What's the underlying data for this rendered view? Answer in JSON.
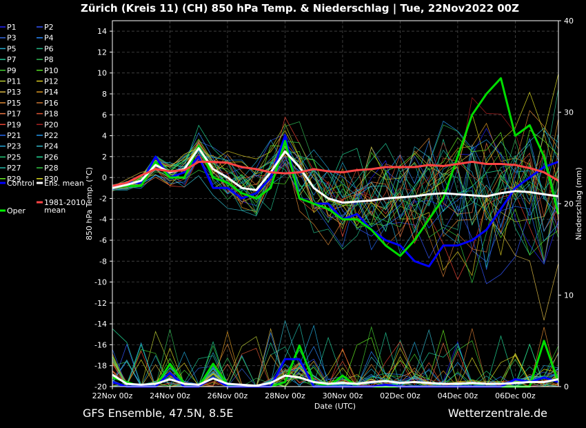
{
  "chart_data": {
    "type": "line",
    "title": "Zürich (Kreis 11)  (CH)  850 hPa Temp. & Niederschlag | Tue, 22Nov2022 00Z",
    "xlabel": "Date (UTC)",
    "ylabel_left": "850 hPa Temp. (°C)",
    "ylabel_right": "Niederschlag (mm)",
    "x_ticks": [
      "22Nov 00z",
      "24Nov 00z",
      "26Nov 00z",
      "28Nov 00z",
      "30Nov 00z",
      "02Dec 00z",
      "04Dec 00z",
      "06Dec 00z"
    ],
    "x_range_days": [
      0,
      15.5
    ],
    "left_ylim": [
      -20,
      15
    ],
    "left_ticks": [
      14,
      12,
      10,
      8,
      6,
      4,
      2,
      0,
      -2,
      -4,
      -6,
      -8,
      -10,
      -12,
      -14,
      -16,
      -18,
      -20
    ],
    "right_ylim": [
      0,
      40
    ],
    "right_ticks": [
      40,
      30,
      20,
      10,
      0
    ],
    "grid": true,
    "legend": {
      "placement": "left",
      "entries": [
        {
          "label": "P1",
          "color": "#2222ff"
        },
        {
          "label": "P2",
          "color": "#3355ff"
        },
        {
          "label": "P3",
          "color": "#3366dd"
        },
        {
          "label": "P4",
          "color": "#2a8aff"
        },
        {
          "label": "P5",
          "color": "#22aacc"
        },
        {
          "label": "P6",
          "color": "#22bb88"
        },
        {
          "label": "P7",
          "color": "#22cc99"
        },
        {
          "label": "P8",
          "color": "#33bb55"
        },
        {
          "label": "P9",
          "color": "#44cc33"
        },
        {
          "label": "P10",
          "color": "#55dd22"
        },
        {
          "label": "P11",
          "color": "#bbcc33"
        },
        {
          "label": "P12",
          "color": "#ddcc22"
        },
        {
          "label": "P13",
          "color": "#ddbb44"
        },
        {
          "label": "P14",
          "color": "#dd9922"
        },
        {
          "label": "P15",
          "color": "#dd8833"
        },
        {
          "label": "P16",
          "color": "#cc7733"
        },
        {
          "label": "P17",
          "color": "#ee7744"
        },
        {
          "label": "P18",
          "color": "#dd5533"
        },
        {
          "label": "P19",
          "color": "#ee4433"
        },
        {
          "label": "P20",
          "color": "#aa2222"
        },
        {
          "label": "P21",
          "color": "#2266ee"
        },
        {
          "label": "P22",
          "color": "#2299ee"
        },
        {
          "label": "P23",
          "color": "#22aadd"
        },
        {
          "label": "P24",
          "color": "#33bbcc"
        },
        {
          "label": "P25",
          "color": "#22cc77"
        },
        {
          "label": "P26",
          "color": "#22dd99"
        },
        {
          "label": "P27",
          "color": "#22bbaa"
        },
        {
          "label": "P28",
          "color": "#33cc44"
        },
        {
          "label": "P29",
          "color": "#66ee22"
        },
        {
          "label": "P30",
          "color": "#dddd22"
        },
        {
          "label": "Control",
          "color": "#0000ff"
        },
        {
          "label": "Ens. mean",
          "color": "#ffffff"
        },
        {
          "label": "1981-2010 mean",
          "color": "#ff4444",
          "lines": [
            "1981-2010",
            "mean"
          ]
        },
        {
          "label": "Oper",
          "color": "#00ff00"
        }
      ]
    },
    "temperature_series": [
      {
        "name": "Control",
        "color": "#0000ff",
        "width": 3,
        "x": [
          0,
          0.5,
          1,
          1.5,
          2,
          2.5,
          3,
          3.5,
          4,
          4.5,
          5,
          5.5,
          6,
          6.5,
          7,
          7.5,
          8,
          8.5,
          9,
          9.5,
          10,
          10.5,
          11,
          11.5,
          12,
          12.5,
          13,
          13.5,
          14,
          14.5,
          15,
          15.5
        ],
        "y": [
          -1,
          -0.5,
          -0.5,
          2,
          0,
          0.5,
          2,
          -1,
          -1,
          -2,
          -1.5,
          0,
          4,
          -2,
          -2.5,
          -2.5,
          -4,
          -3.5,
          -5,
          -6,
          -6.5,
          -8,
          -8.5,
          -6.5,
          -6.5,
          -6,
          -5,
          -3,
          -1,
          0,
          1,
          1.5
        ]
      },
      {
        "name": "Oper",
        "color": "#00dd00",
        "width": 3,
        "x": [
          0,
          0.5,
          1,
          1.5,
          2,
          2.5,
          3,
          3.5,
          4,
          4.5,
          5,
          5.5,
          6,
          6.5,
          7,
          7.5,
          8,
          8.5,
          9,
          9.5,
          10,
          10.5,
          11,
          11.5,
          12,
          12.5,
          13,
          13.5,
          14,
          14.5,
          15,
          15.5
        ],
        "y": [
          -1,
          -0.8,
          -0.8,
          1.5,
          0,
          0,
          3,
          0,
          -0.5,
          -1.5,
          -2,
          -1,
          3.5,
          -2,
          -2.5,
          -3,
          -4,
          -4,
          -5,
          -6.5,
          -7.5,
          -6,
          -4,
          -2,
          2,
          6,
          8,
          9.5,
          4,
          5,
          2,
          -3.5
        ]
      },
      {
        "name": "Ens. mean",
        "color": "#ffffff",
        "width": 3,
        "x": [
          0,
          0.5,
          1,
          1.5,
          2,
          2.5,
          3,
          3.5,
          4,
          4.5,
          5,
          5.5,
          6,
          6.5,
          7,
          7.5,
          8,
          8.5,
          9,
          9.5,
          10,
          10.5,
          11,
          11.5,
          12,
          12.5,
          13,
          13.5,
          14,
          14.5,
          15,
          15.5
        ],
        "y": [
          -1,
          -0.7,
          -0.3,
          1.2,
          0.5,
          0.8,
          2.8,
          0.8,
          0,
          -1,
          -1.2,
          0.5,
          2.5,
          1,
          -1,
          -2,
          -2.4,
          -2.3,
          -2.2,
          -2,
          -1.9,
          -1.8,
          -1.6,
          -1.5,
          -1.6,
          -1.7,
          -1.8,
          -1.5,
          -1.3,
          -1.4,
          -1.6,
          -1.8
        ]
      },
      {
        "name": "1981-2010 mean",
        "color": "#ff4444",
        "width": 3,
        "x": [
          0,
          0.5,
          1,
          1.5,
          2,
          2.5,
          3,
          3.5,
          4,
          4.5,
          5,
          5.5,
          6,
          6.5,
          7,
          7.5,
          8,
          8.5,
          9,
          9.5,
          10,
          10.5,
          11,
          11.5,
          12,
          12.5,
          13,
          13.5,
          14,
          14.5,
          15,
          15.5
        ],
        "y": [
          -0.8,
          -0.5,
          0.2,
          0.8,
          0.6,
          0.7,
          1.5,
          1.5,
          1.4,
          1,
          0.8,
          0.5,
          0.4,
          0.5,
          0.8,
          0.6,
          0.5,
          0.7,
          0.8,
          1,
          1,
          1,
          1.2,
          1.1,
          1.3,
          1.5,
          1.3,
          1.3,
          1.2,
          0.9,
          0.5,
          -0.3
        ]
      }
    ],
    "precipitation_series": [
      {
        "name": "Oper",
        "color": "#00dd00",
        "width": 3,
        "x": [
          0,
          0.5,
          1,
          1.5,
          2,
          2.5,
          3,
          3.5,
          4,
          4.5,
          5,
          5.5,
          6,
          6.5,
          7,
          7.5,
          8,
          8.5,
          9,
          9.5,
          10,
          10.5,
          11,
          11.5,
          12,
          12.5,
          13,
          13.5,
          14,
          14.5,
          15,
          15.5
        ],
        "y": [
          1,
          0.5,
          0,
          0,
          2.5,
          0.3,
          0,
          2.5,
          0.2,
          0,
          0,
          0,
          0.5,
          4.5,
          0.5,
          0,
          1.2,
          0,
          0,
          0,
          0,
          0,
          0,
          0,
          0,
          0,
          0,
          0,
          0,
          0,
          5,
          0.5
        ]
      },
      {
        "name": "Control",
        "color": "#0000ff",
        "width": 3,
        "x": [
          0,
          0.5,
          1,
          1.5,
          2,
          2.5,
          3,
          3.5,
          4,
          4.5,
          5,
          5.5,
          6,
          6.5,
          7,
          7.5,
          8,
          8.5,
          9,
          9.5,
          10,
          10.5,
          11,
          11.5,
          12,
          12.5,
          13,
          13.5,
          14,
          14.5,
          15,
          15.5
        ],
        "y": [
          0.5,
          0,
          0,
          0,
          1.5,
          0,
          0,
          1,
          0,
          0,
          0,
          0,
          3,
          3,
          0,
          0,
          0,
          0,
          0,
          0.2,
          0,
          0,
          0,
          0,
          0,
          0,
          0,
          0,
          0.8,
          0.5,
          1,
          0.5
        ]
      },
      {
        "name": "Ens. mean",
        "color": "#ffffff",
        "width": 3,
        "x": [
          0,
          0.5,
          1,
          1.5,
          2,
          2.5,
          3,
          3.5,
          4,
          4.5,
          5,
          5.5,
          6,
          6.5,
          7,
          7.5,
          8,
          8.5,
          9,
          9.5,
          10,
          10.5,
          11,
          11.5,
          12,
          12.5,
          13,
          13.5,
          14,
          14.5,
          15,
          15.5
        ],
        "y": [
          1.3,
          0.3,
          0.2,
          0.3,
          0.8,
          0.3,
          0.2,
          0.9,
          0.3,
          0.2,
          0.1,
          0.4,
          1.2,
          1,
          0.5,
          0.3,
          0.4,
          0.3,
          0.5,
          0.6,
          0.4,
          0.5,
          0.4,
          0.3,
          0.3,
          0.4,
          0.3,
          0.3,
          0.4,
          0.5,
          0.5,
          0.8
        ]
      }
    ]
  },
  "footer_left": "GFS Ensemble, 47.5N, 8.5E",
  "footer_right": "Wetterzentrale.de"
}
